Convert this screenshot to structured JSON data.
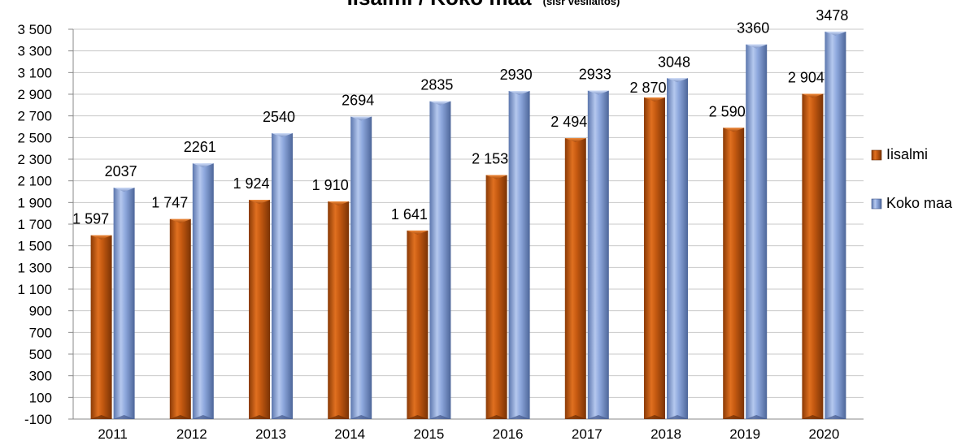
{
  "chart_data": {
    "type": "bar",
    "title": "Iisalmi / Koko maa",
    "subtitle": "(sisr vesilaitos)",
    "categories": [
      "2011",
      "2012",
      "2013",
      "2014",
      "2015",
      "2016",
      "2017",
      "2018",
      "2019",
      "2020"
    ],
    "series": [
      {
        "name": "Iisalmi",
        "color": "#c65a11",
        "values": [
          1597,
          1747,
          1924,
          1910,
          1641,
          2153,
          2494,
          2870,
          2590,
          2904
        ],
        "labels": [
          "1 597",
          "1 747",
          "1 924",
          "1 910",
          "1 641",
          "2 153",
          "2 494",
          "2 870",
          "2 590",
          "2 904"
        ]
      },
      {
        "name": "Koko maa",
        "color": "#8fa9de",
        "values": [
          2037,
          2261,
          2540,
          2694,
          2835,
          2930,
          2933,
          3048,
          3360,
          3478
        ],
        "labels": [
          "2037",
          "2261",
          "2540",
          "2694",
          "2835",
          "2930",
          "2933",
          "3048",
          "3360",
          "3478"
        ]
      }
    ],
    "ylim": [
      -100,
      3500
    ],
    "yticks": [
      -100,
      100,
      300,
      500,
      700,
      900,
      1100,
      1300,
      1500,
      1700,
      1900,
      2100,
      2300,
      2500,
      2700,
      2900,
      3100,
      3300,
      3500
    ],
    "ytick_labels": [
      "-100",
      "100",
      "300",
      "500",
      "700",
      "900",
      "1 100",
      "1 300",
      "1 500",
      "1 700",
      "1 900",
      "2 100",
      "2 300",
      "2 500",
      "2 700",
      "2 900",
      "3 100",
      "3 300",
      "3 500"
    ],
    "grid": true,
    "legend_position": "right",
    "xlabel": "",
    "ylabel": ""
  }
}
